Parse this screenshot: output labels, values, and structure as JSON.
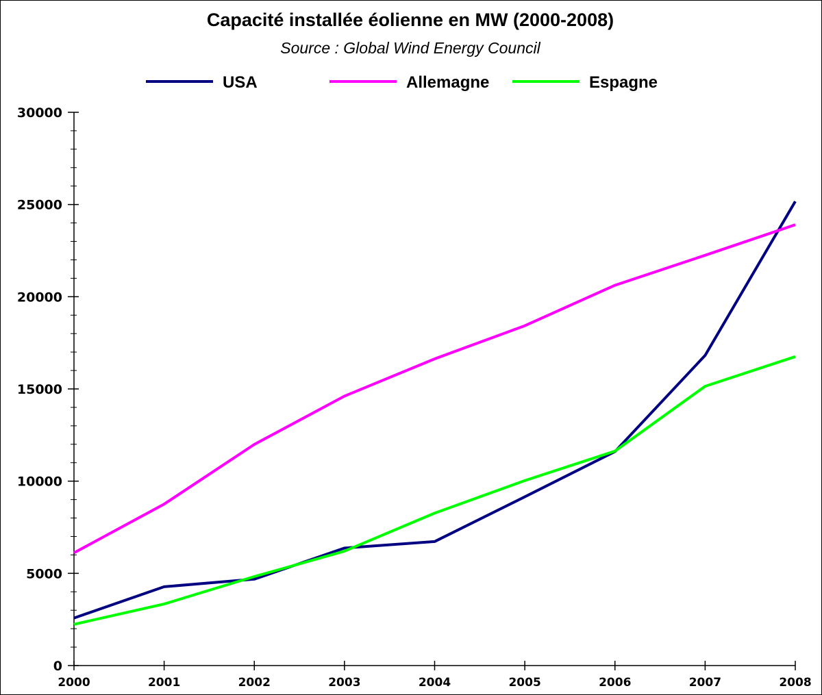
{
  "chart_data": {
    "type": "line",
    "title": "Capacité installée éolienne en MW (2000-2008)",
    "subtitle": "Source : Global Wind Energy Council",
    "xlabel": "",
    "ylabel": "",
    "x": [
      "2000",
      "2001",
      "2002",
      "2003",
      "2004",
      "2005",
      "2006",
      "2007",
      "2008"
    ],
    "ylim": [
      0,
      30000
    ],
    "y_ticks": [
      "0",
      "5000",
      "10000",
      "15000",
      "20000",
      "25000",
      "30000"
    ],
    "y_tick_values": [
      0,
      5000,
      10000,
      15000,
      20000,
      25000,
      30000
    ],
    "y_minor_step": 1000,
    "grid": false,
    "legend_position": "top",
    "series": [
      {
        "name": "USA",
        "color": "#000080",
        "values": [
          2578,
          4275,
          4685,
          6372,
          6725,
          9149,
          11603,
          16819,
          25170
        ]
      },
      {
        "name": "Allemagne",
        "color": "#ff00ff",
        "values": [
          6113,
          8754,
          11994,
          14609,
          16629,
          18428,
          20622,
          22247,
          23903
        ]
      },
      {
        "name": "Espagne",
        "color": "#00ff00",
        "values": [
          2235,
          3337,
          4825,
          6203,
          8263,
          10028,
          11630,
          15145,
          16754
        ]
      }
    ]
  }
}
